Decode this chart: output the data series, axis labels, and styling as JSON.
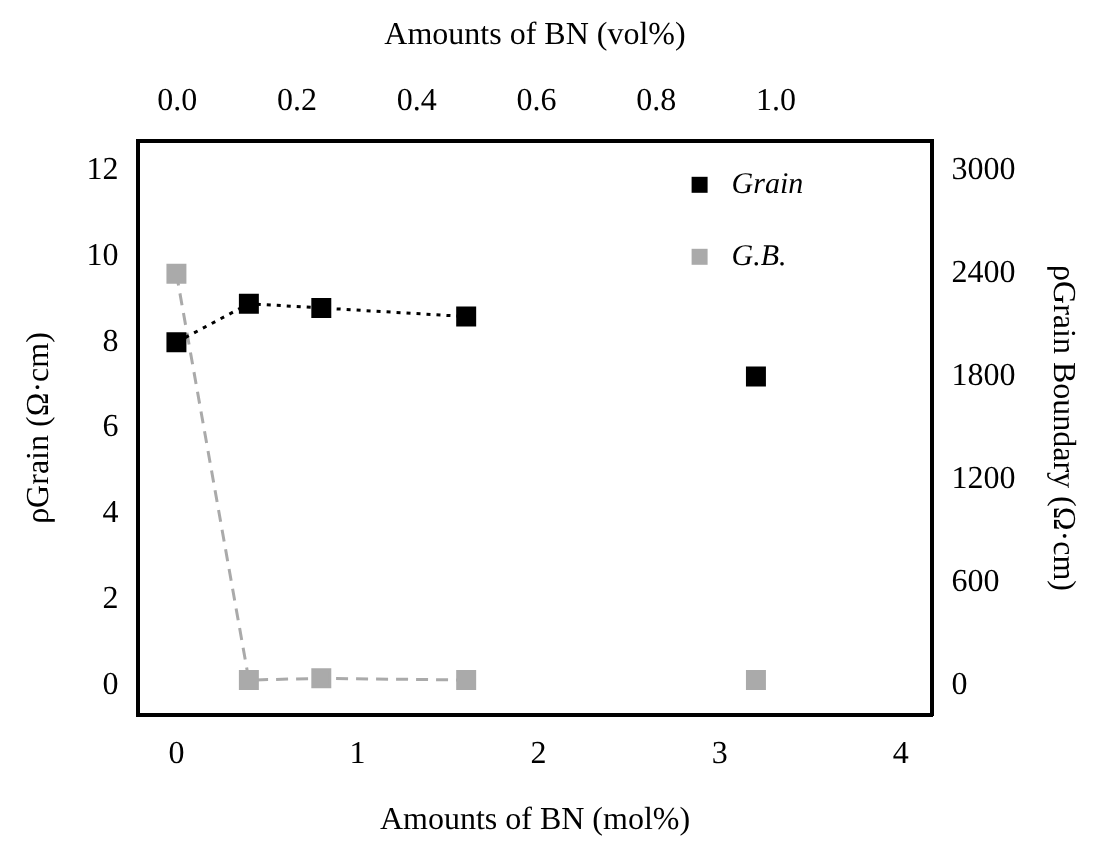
{
  "chart_data": {
    "type": "scatter",
    "xlabel": "Amounts of BN (mol%)",
    "x2label": "Amounts of BN (vol%)",
    "ylabel": "ρGrain (Ω·cm)",
    "y2label": "ρGrain Boundary (Ω·cm)",
    "xlim": [
      -0.21,
      4.17
    ],
    "xticks": [
      0,
      1,
      2,
      3,
      4
    ],
    "x2lim": [
      -0.065,
      1.26
    ],
    "x2ticks": [
      {
        "value": 0,
        "label": "0.0"
      },
      {
        "value": 0.2,
        "label": "0.2"
      },
      {
        "value": 0.4,
        "label": "0.4"
      },
      {
        "value": 0.6,
        "label": "0.6"
      },
      {
        "value": 0.8,
        "label": "0.8"
      },
      {
        "value": 1,
        "label": "1.0"
      }
    ],
    "ylim": [
      -0.7,
      12.7
    ],
    "yticks": [
      0,
      2,
      4,
      6,
      8,
      10,
      12
    ],
    "y2lim": [
      -175,
      3175
    ],
    "y2ticks": [
      0,
      600,
      1200,
      1800,
      2400,
      3000
    ],
    "grid": false,
    "legend": "top right",
    "marker": "square",
    "series": [
      {
        "name": "Grain",
        "type": "line",
        "line_style": "dotted",
        "color": "#000000",
        "x": [
          0,
          0.4,
          0.8,
          1.6
        ],
        "values": [
          8,
          8.9,
          8.8,
          8.6
        ]
      },
      {
        "type": "scatter",
        "color": "#000000",
        "x": [
          3.2
        ],
        "values": [
          7.2
        ]
      },
      {
        "name": "G.B.",
        "type": "line",
        "line_style": "dashed",
        "axis": "y2",
        "color": "#aaaaaa",
        "x": [
          0,
          0.4,
          0.8,
          1.6
        ],
        "values": [
          2400,
          30,
          40,
          30
        ]
      },
      {
        "type": "scatter",
        "axis": "y2",
        "color": "#aaaaaa",
        "x": [
          3.2
        ],
        "values": [
          30
        ]
      }
    ]
  }
}
